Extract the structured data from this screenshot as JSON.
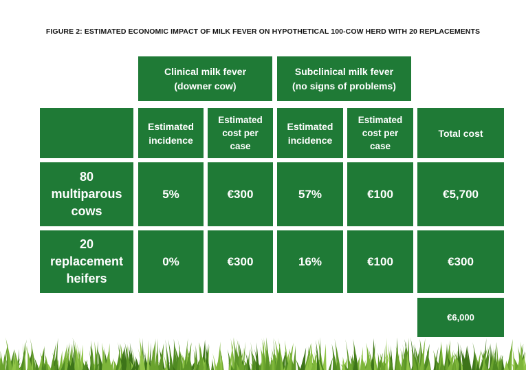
{
  "title": "FIGURE 2: ESTIMATED ECONOMIC IMPACT OF MILK FEVER ON HYPOTHETICAL 100-COW HERD WITH 20 REPLACEMENTS",
  "groups": [
    "Clinical milk fever\n(downer cow)",
    "Subclinical milk fever\n(no signs of problems)"
  ],
  "headers": {
    "clinical_incidence": "Estimated\nincidence",
    "clinical_cost": "Estimated\ncost per\ncase",
    "subclinical_incidence": "Estimated\nincidence",
    "subclinical_cost": "Estimated\ncost per\ncase",
    "total": "Total cost"
  },
  "rows": [
    {
      "label": "80\nmultiparous\ncows",
      "clinical_incidence": "5%",
      "clinical_cost": "€300",
      "subclinical_incidence": "57%",
      "subclinical_cost": "€100",
      "total": "€5,700"
    },
    {
      "label": "20\nreplacement\nheifers",
      "clinical_incidence": "0%",
      "clinical_cost": "€300",
      "subclinical_incidence": "16%",
      "subclinical_cost": "€100",
      "total": "€300"
    }
  ],
  "grand_total": "€6,000",
  "colors": {
    "cell_green": "#1f7a36",
    "text": "#ffffff",
    "title": "#111111"
  }
}
